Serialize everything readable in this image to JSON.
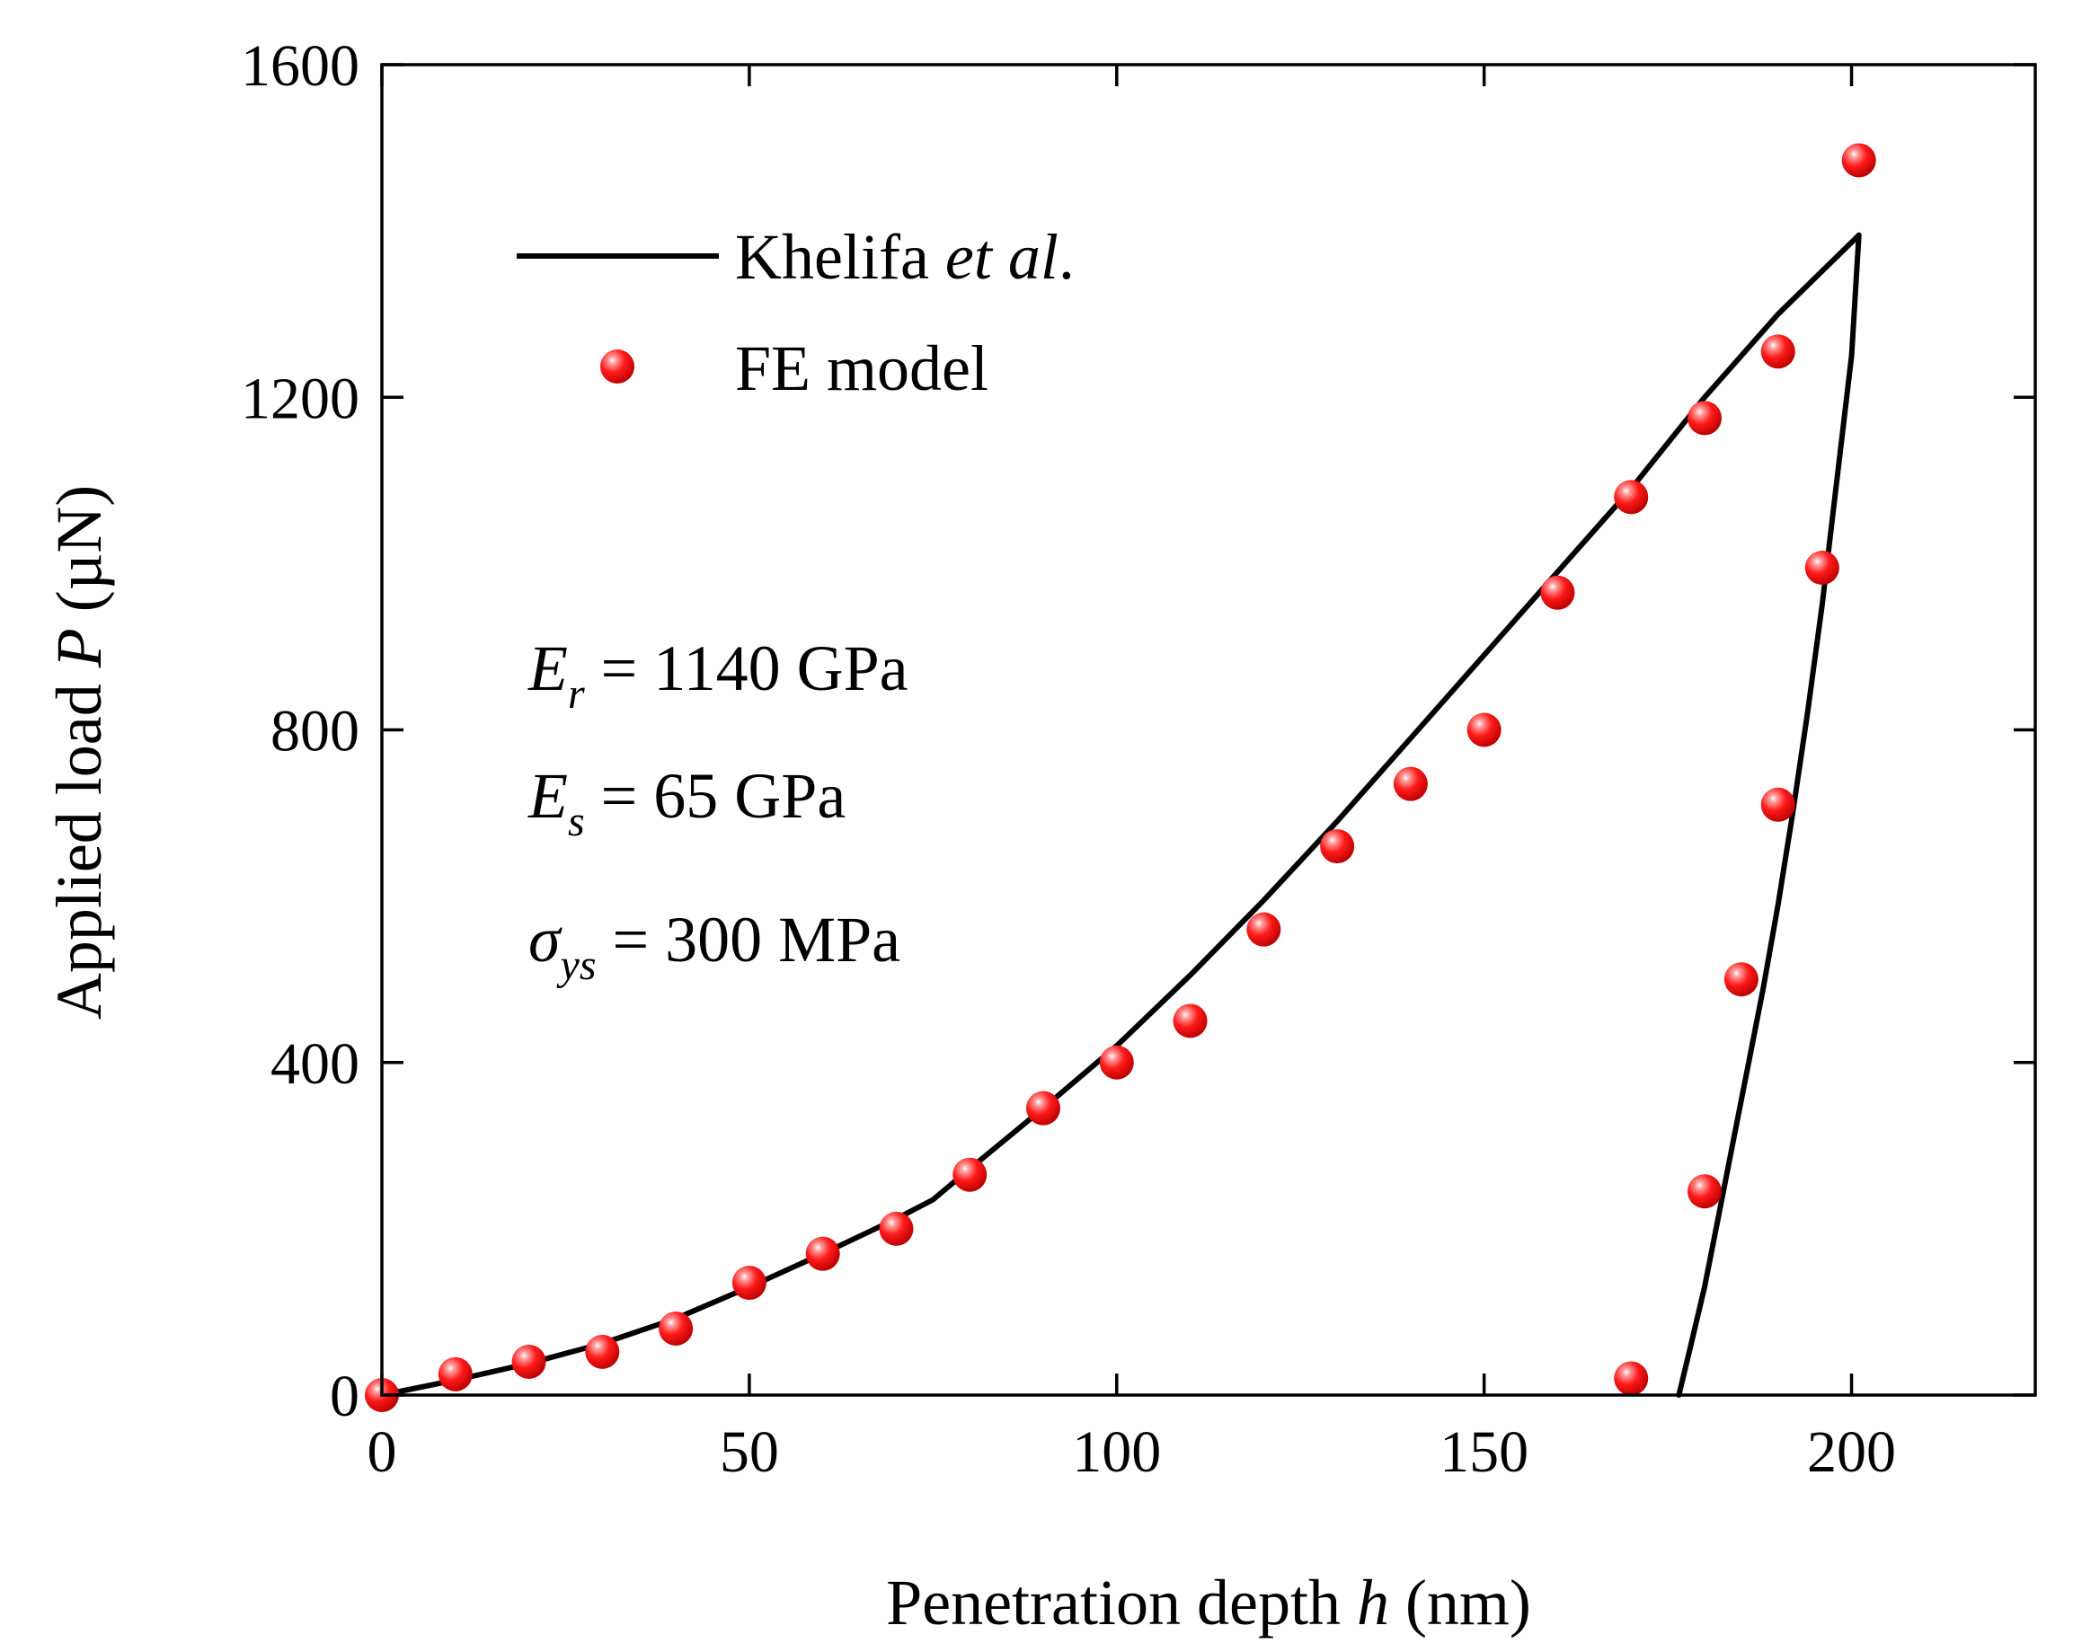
{
  "chart_data": {
    "type": "scatter",
    "title": "",
    "xlabel": {
      "prefix": "Penetration depth ",
      "variable": "h",
      "suffix": " (nm)"
    },
    "ylabel": {
      "prefix": "Applied load ",
      "variable": "P",
      "suffix": " (µN)"
    },
    "xlim": [
      0,
      225
    ],
    "ylim": [
      0,
      1600
    ],
    "xticks": [
      0,
      50,
      100,
      150,
      200
    ],
    "yticks": [
      0,
      400,
      800,
      1200,
      1600
    ],
    "xtick_labels": [
      "0",
      "50",
      "100",
      "150",
      "200"
    ],
    "ytick_labels": [
      "0",
      "400",
      "800",
      "1200",
      "1600"
    ],
    "legend_position": "top-left",
    "series": [
      {
        "name": "Khelifa et al.",
        "legend_parts": [
          "Khelifa ",
          "et al",
          "."
        ],
        "style": "line",
        "color": "#000000",
        "loading": {
          "x": [
            0,
            10,
            20,
            30,
            40,
            50,
            60,
            70,
            75,
            80,
            90,
            100,
            110,
            120,
            130,
            140,
            150,
            160,
            170,
            180,
            190,
            201
          ],
          "y": [
            0,
            18,
            38,
            62,
            92,
            130,
            170,
            212,
            235,
            272,
            345,
            420,
            505,
            595,
            690,
            790,
            890,
            990,
            1090,
            1200,
            1300,
            1395
          ]
        },
        "unloading": {
          "x": [
            201,
            200,
            198,
            196,
            194,
            192,
            190,
            188,
            186,
            184,
            182,
            180,
            178,
            176.5
          ],
          "y": [
            1395,
            1250,
            1100,
            950,
            820,
            700,
            590,
            490,
            400,
            310,
            220,
            130,
            55,
            0
          ]
        }
      },
      {
        "name": "FE model",
        "style": "markers",
        "color": "#e00000",
        "x": [
          0,
          10,
          20,
          30,
          40,
          50,
          60,
          70,
          80,
          90,
          100,
          110,
          120,
          130,
          140,
          150,
          160,
          170,
          180,
          190,
          201,
          196,
          190,
          185,
          180,
          170
        ],
        "y": [
          0,
          25,
          40,
          52,
          80,
          135,
          170,
          200,
          265,
          345,
          400,
          450,
          560,
          660,
          735,
          800,
          965,
          1080,
          1175,
          1255,
          1485,
          995,
          710,
          500,
          245,
          20
        ]
      }
    ],
    "annotations": [
      {
        "symbol": "E",
        "subscript": "r",
        "text": " = 1140 GPa"
      },
      {
        "symbol": "E",
        "subscript": "s",
        "text": " = 65 GPa"
      },
      {
        "symbol": "σ",
        "subscript": "ys",
        "text": " = 300 MPa"
      }
    ]
  }
}
